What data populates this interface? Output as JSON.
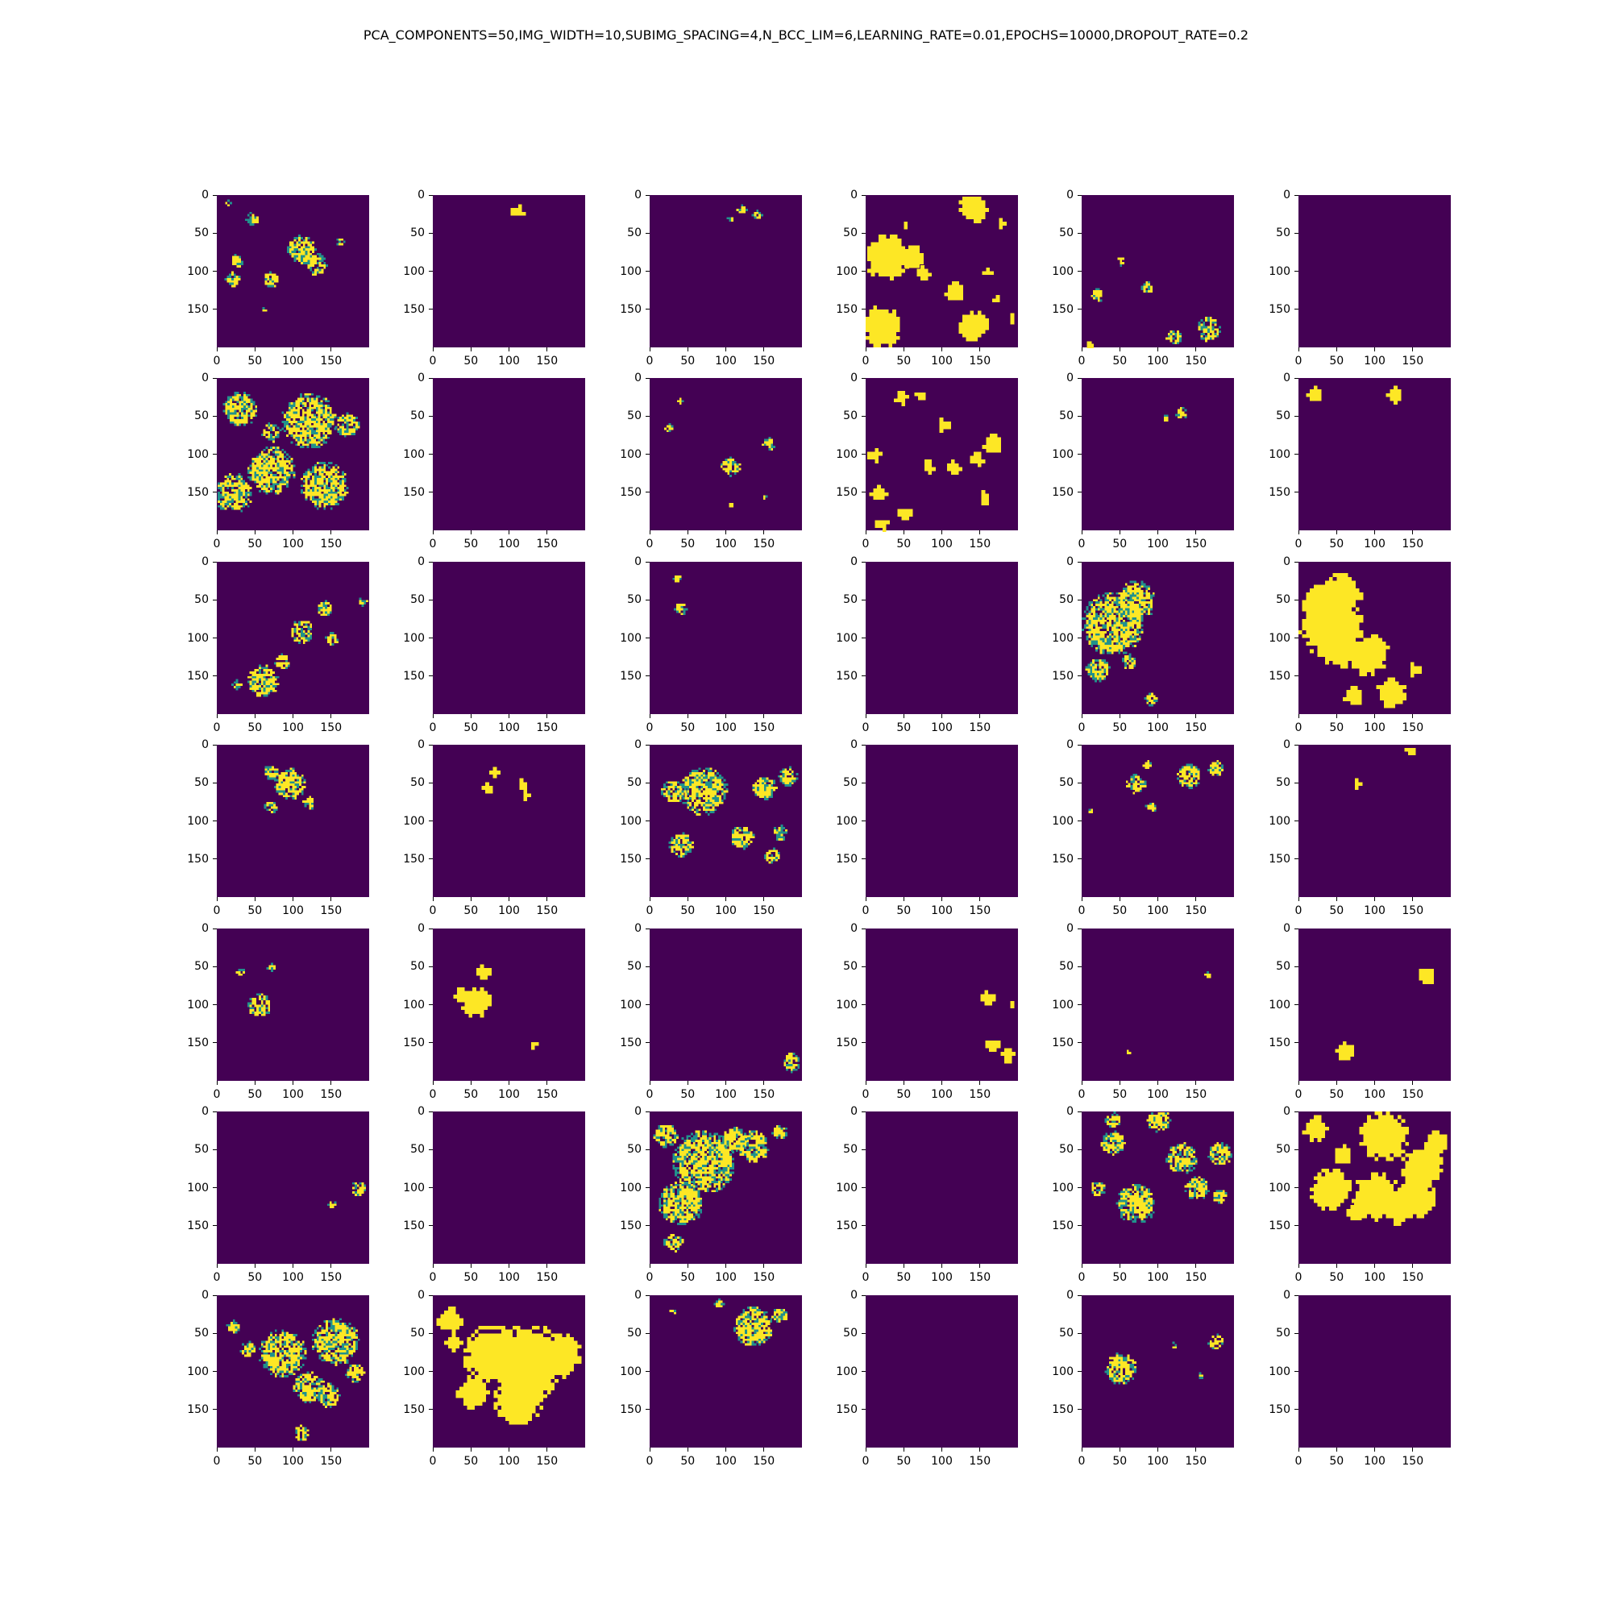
{
  "title": "PCA_COMPONENTS=50,IMG_WIDTH=10,SUBIMG_SPACING=4,N_BCC_LIM=6,LEARNING_RATE=0.01,EPOCHS=10000,DROPOUT_RATE=0.2",
  "colors": {
    "background": "#440154",
    "foreground": "#fde725",
    "mid": "#21918c"
  },
  "chart_data": {
    "type": "heatmap",
    "layout": "7 rows x 6 columns grid of image panels",
    "xlim": [
      0,
      200
    ],
    "ylim": [
      200,
      0
    ],
    "x_ticks": [
      "0",
      "50",
      "100",
      "150"
    ],
    "y_ticks": [
      "0",
      "50",
      "100",
      "150"
    ],
    "colormap": "viridis",
    "panels": [
      {
        "style": "speckle",
        "blobs": [
          [
            45,
            30,
            8
          ],
          [
            70,
            110,
            10
          ],
          [
            110,
            70,
            18
          ],
          [
            130,
            90,
            14
          ],
          [
            25,
            85,
            8
          ],
          [
            20,
            110,
            10
          ],
          [
            160,
            60,
            6
          ],
          [
            60,
            150,
            3
          ],
          [
            15,
            10,
            4
          ]
        ]
      },
      {
        "style": "solid",
        "blobs": [
          [
            110,
            20,
            8
          ]
        ]
      },
      {
        "style": "speckle",
        "blobs": [
          [
            120,
            18,
            6
          ],
          [
            140,
            25,
            6
          ],
          [
            105,
            30,
            4
          ]
        ]
      },
      {
        "style": "solid",
        "blobs": [
          [
            25,
            80,
            28
          ],
          [
            60,
            80,
            14
          ],
          [
            140,
            15,
            18
          ],
          [
            115,
            125,
            12
          ],
          [
            20,
            170,
            25
          ],
          [
            140,
            170,
            18
          ],
          [
            50,
            35,
            5
          ],
          [
            175,
            35,
            5
          ],
          [
            158,
            100,
            5
          ],
          [
            190,
            160,
            5
          ],
          [
            75,
            100,
            8
          ],
          [
            170,
            135,
            4
          ]
        ]
      },
      {
        "style": "speckle",
        "blobs": [
          [
            50,
            85,
            6
          ],
          [
            85,
            120,
            7
          ],
          [
            165,
            175,
            15
          ],
          [
            120,
            185,
            10
          ],
          [
            20,
            130,
            8
          ],
          [
            10,
            195,
            6
          ]
        ]
      },
      {
        "style": "empty",
        "blobs": []
      },
      {
        "style": "speckle",
        "blobs": [
          [
            30,
            40,
            22
          ],
          [
            120,
            55,
            35
          ],
          [
            70,
            120,
            30
          ],
          [
            140,
            140,
            30
          ],
          [
            20,
            150,
            25
          ],
          [
            170,
            60,
            15
          ],
          [
            70,
            70,
            12
          ]
        ]
      },
      {
        "style": "empty",
        "blobs": []
      },
      {
        "style": "speckle",
        "blobs": [
          [
            105,
            115,
            12
          ],
          [
            155,
            85,
            8
          ],
          [
            25,
            65,
            6
          ],
          [
            40,
            30,
            4
          ],
          [
            150,
            155,
            4
          ],
          [
            105,
            165,
            4
          ]
        ]
      },
      {
        "style": "solid",
        "blobs": [
          [
            45,
            25,
            8
          ],
          [
            70,
            20,
            6
          ],
          [
            100,
            60,
            8
          ],
          [
            10,
            100,
            8
          ],
          [
            80,
            115,
            8
          ],
          [
            115,
            115,
            8
          ],
          [
            165,
            85,
            12
          ],
          [
            145,
            105,
            8
          ],
          [
            15,
            150,
            10
          ],
          [
            50,
            175,
            8
          ],
          [
            155,
            155,
            8
          ],
          [
            20,
            190,
            8
          ]
        ]
      },
      {
        "style": "speckle",
        "blobs": [
          [
            130,
            45,
            7
          ],
          [
            110,
            50,
            5
          ]
        ]
      },
      {
        "style": "solid",
        "blobs": [
          [
            20,
            20,
            10
          ],
          [
            125,
            20,
            10
          ]
        ]
      },
      {
        "style": "speckle",
        "blobs": [
          [
            110,
            90,
            15
          ],
          [
            140,
            60,
            10
          ],
          [
            60,
            155,
            20
          ],
          [
            150,
            100,
            8
          ],
          [
            190,
            50,
            6
          ],
          [
            25,
            160,
            6
          ],
          [
            85,
            130,
            10
          ]
        ]
      },
      {
        "style": "empty",
        "blobs": []
      },
      {
        "style": "speckle",
        "blobs": [
          [
            40,
            60,
            8
          ],
          [
            35,
            20,
            5
          ]
        ]
      },
      {
        "style": "empty",
        "blobs": []
      },
      {
        "style": "speckle",
        "blobs": [
          [
            40,
            80,
            40
          ],
          [
            70,
            50,
            25
          ],
          [
            20,
            140,
            15
          ],
          [
            60,
            130,
            10
          ],
          [
            90,
            180,
            8
          ]
        ]
      },
      {
        "style": "solid",
        "blobs": [
          [
            40,
            80,
            40
          ],
          [
            25,
            50,
            20
          ],
          [
            55,
            40,
            25
          ],
          [
            90,
            120,
            25
          ],
          [
            120,
            170,
            18
          ],
          [
            70,
            175,
            12
          ],
          [
            150,
            140,
            8
          ],
          [
            50,
            110,
            25
          ]
        ]
      },
      {
        "style": "speckle",
        "blobs": [
          [
            95,
            50,
            20
          ],
          [
            70,
            35,
            10
          ],
          [
            120,
            75,
            8
          ],
          [
            70,
            80,
            8
          ]
        ]
      },
      {
        "style": "solid",
        "blobs": [
          [
            70,
            55,
            6
          ],
          [
            115,
            50,
            6
          ],
          [
            80,
            35,
            6
          ],
          [
            120,
            65,
            6
          ]
        ]
      },
      {
        "style": "speckle",
        "blobs": [
          [
            40,
            130,
            15
          ],
          [
            70,
            60,
            30
          ],
          [
            150,
            55,
            15
          ],
          [
            120,
            120,
            15
          ],
          [
            170,
            115,
            10
          ],
          [
            180,
            40,
            12
          ],
          [
            30,
            60,
            15
          ],
          [
            160,
            145,
            10
          ]
        ]
      },
      {
        "style": "empty",
        "blobs": []
      },
      {
        "style": "speckle",
        "blobs": [
          [
            140,
            40,
            15
          ],
          [
            175,
            30,
            10
          ],
          [
            70,
            50,
            12
          ],
          [
            90,
            80,
            7
          ],
          [
            10,
            85,
            4
          ],
          [
            85,
            25,
            5
          ]
        ]
      },
      {
        "style": "solid",
        "blobs": [
          [
            75,
            50,
            6
          ],
          [
            145,
            5,
            6
          ]
        ]
      },
      {
        "style": "speckle",
        "blobs": [
          [
            55,
            100,
            15
          ],
          [
            30,
            55,
            5
          ],
          [
            70,
            50,
            5
          ]
        ]
      },
      {
        "style": "solid",
        "blobs": [
          [
            55,
            95,
            18
          ],
          [
            65,
            55,
            8
          ],
          [
            130,
            150,
            6
          ],
          [
            35,
            85,
            8
          ]
        ]
      },
      {
        "style": "speckle",
        "blobs": [
          [
            185,
            175,
            12
          ]
        ]
      },
      {
        "style": "solid",
        "blobs": [
          [
            160,
            90,
            9
          ],
          [
            165,
            150,
            8
          ],
          [
            185,
            165,
            8
          ],
          [
            190,
            95,
            5
          ]
        ]
      },
      {
        "style": "speckle",
        "blobs": [
          [
            165,
            60,
            4
          ],
          [
            60,
            160,
            4
          ]
        ]
      },
      {
        "style": "solid",
        "blobs": [
          [
            165,
            60,
            12
          ],
          [
            60,
            160,
            12
          ]
        ]
      },
      {
        "style": "speckle",
        "blobs": [
          [
            185,
            100,
            10
          ],
          [
            150,
            120,
            5
          ]
        ]
      },
      {
        "style": "empty",
        "blobs": []
      },
      {
        "style": "speckle",
        "blobs": [
          [
            70,
            65,
            40
          ],
          [
            40,
            120,
            28
          ],
          [
            135,
            45,
            20
          ],
          [
            30,
            170,
            12
          ],
          [
            110,
            35,
            15
          ],
          [
            170,
            25,
            10
          ],
          [
            20,
            30,
            15
          ]
        ]
      },
      {
        "style": "empty",
        "blobs": []
      },
      {
        "style": "speckle",
        "blobs": [
          [
            40,
            40,
            15
          ],
          [
            130,
            60,
            20
          ],
          [
            180,
            55,
            15
          ],
          [
            70,
            120,
            25
          ],
          [
            150,
            100,
            15
          ],
          [
            20,
            100,
            10
          ],
          [
            100,
            10,
            15
          ],
          [
            40,
            10,
            10
          ],
          [
            180,
            110,
            10
          ]
        ]
      },
      {
        "style": "solid",
        "blobs": [
          [
            110,
            30,
            30
          ],
          [
            160,
            70,
            25
          ],
          [
            40,
            100,
            25
          ],
          [
            100,
            110,
            30
          ],
          [
            150,
            110,
            25
          ],
          [
            75,
            130,
            12
          ],
          [
            130,
            130,
            15
          ],
          [
            20,
            20,
            15
          ],
          [
            180,
            40,
            15
          ],
          [
            55,
            55,
            12
          ]
        ]
      },
      {
        "style": "speckle",
        "blobs": [
          [
            85,
            75,
            30
          ],
          [
            155,
            60,
            30
          ],
          [
            120,
            120,
            20
          ],
          [
            20,
            40,
            8
          ],
          [
            145,
            130,
            15
          ],
          [
            40,
            70,
            10
          ],
          [
            180,
            100,
            12
          ],
          [
            110,
            180,
            10
          ]
        ]
      },
      {
        "style": "solid",
        "blobs": [
          [
            125,
            85,
            45
          ],
          [
            75,
            75,
            35
          ],
          [
            165,
            75,
            25
          ],
          [
            20,
            30,
            15
          ],
          [
            110,
            135,
            30
          ],
          [
            50,
            125,
            20
          ],
          [
            25,
            60,
            10
          ]
        ]
      },
      {
        "style": "speckle",
        "blobs": [
          [
            135,
            40,
            25
          ],
          [
            170,
            25,
            10
          ],
          [
            90,
            10,
            6
          ],
          [
            30,
            20,
            4
          ]
        ]
      },
      {
        "style": "empty",
        "blobs": []
      },
      {
        "style": "speckle",
        "blobs": [
          [
            50,
            95,
            20
          ],
          [
            175,
            60,
            10
          ],
          [
            155,
            105,
            4
          ],
          [
            120,
            65,
            4
          ]
        ]
      },
      {
        "style": "empty",
        "blobs": []
      }
    ]
  }
}
